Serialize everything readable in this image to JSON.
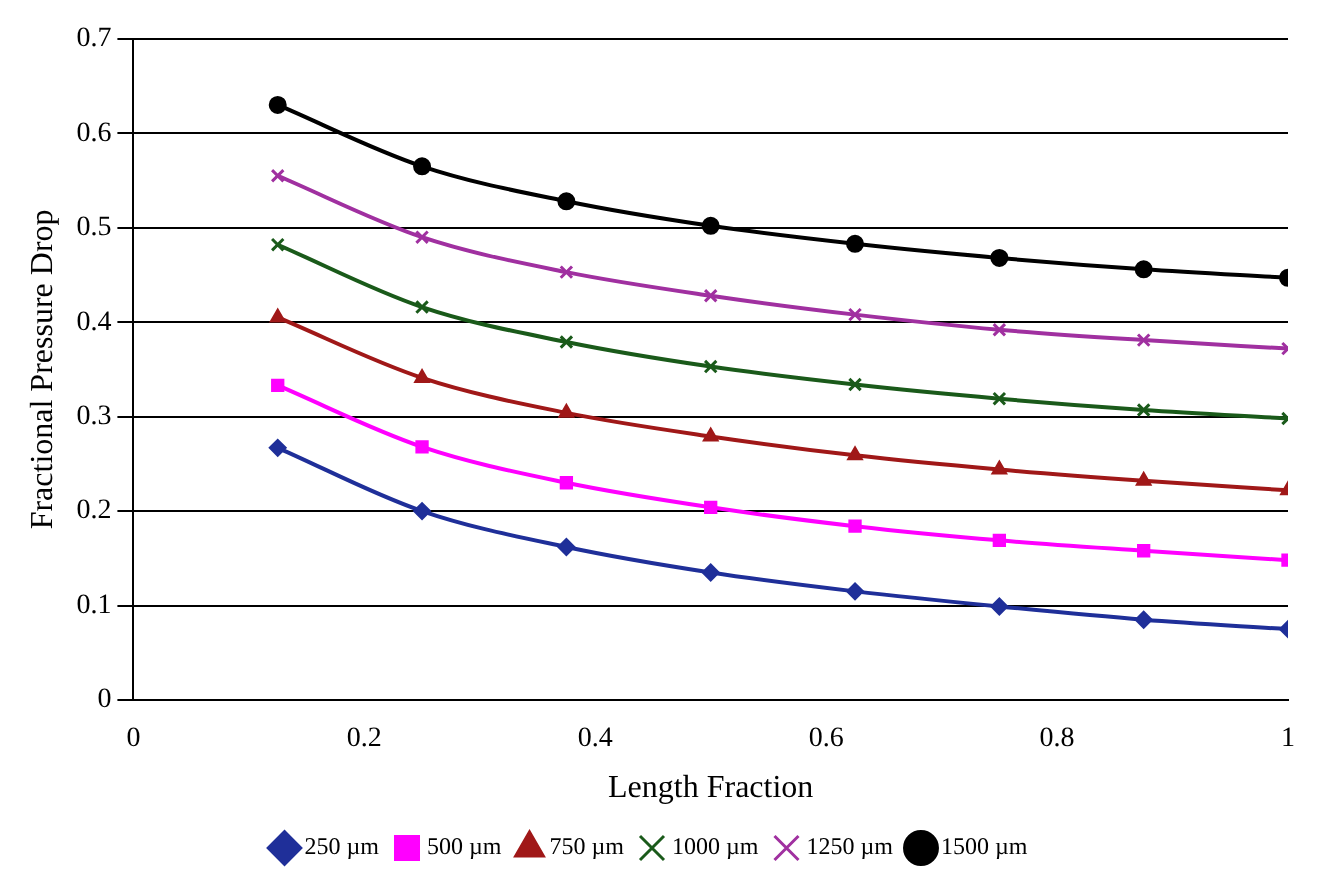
{
  "chart_data": {
    "type": "line",
    "xlabel": "Length Fraction",
    "ylabel": "Fractional Pressure Drop",
    "x": [
      0.125,
      0.25,
      0.375,
      0.5,
      0.625,
      0.75,
      0.875,
      1
    ],
    "xlim": [
      0,
      1
    ],
    "xticks": [
      0,
      0.2,
      0.4,
      0.6,
      0.8,
      1
    ],
    "ylim": [
      0,
      0.7
    ],
    "yticks": [
      0,
      0.1,
      0.2,
      0.3,
      0.4,
      0.5,
      0.6,
      0.7
    ],
    "grid": "y",
    "legend": "bottom",
    "line_style": "solid",
    "series": [
      {
        "name": "250 µm",
        "color": "#1f2f99",
        "marker": "diamond",
        "values": [
          0.267,
          0.2,
          0.162,
          0.135,
          0.115,
          0.099,
          0.085,
          0.075
        ]
      },
      {
        "name": "500 µm",
        "color": "#ff00ff",
        "marker": "square",
        "values": [
          0.333,
          0.268,
          0.23,
          0.204,
          0.184,
          0.169,
          0.158,
          0.148
        ]
      },
      {
        "name": "750 µm",
        "color": "#a01818",
        "marker": "triangle",
        "values": [
          0.405,
          0.341,
          0.304,
          0.279,
          0.259,
          0.244,
          0.232,
          0.222
        ]
      },
      {
        "name": "1000 µm",
        "color": "#1a5a1a",
        "marker": "cross",
        "values": [
          0.482,
          0.416,
          0.379,
          0.353,
          0.334,
          0.319,
          0.307,
          0.298
        ]
      },
      {
        "name": "1250 µm",
        "color": "#a030a0",
        "marker": "cross",
        "values": [
          0.555,
          0.49,
          0.453,
          0.428,
          0.408,
          0.392,
          0.381,
          0.372
        ]
      },
      {
        "name": "1500 µm",
        "color": "#000000",
        "marker": "circle",
        "values": [
          0.63,
          0.565,
          0.528,
          0.502,
          0.483,
          0.468,
          0.456,
          0.447
        ]
      }
    ]
  }
}
